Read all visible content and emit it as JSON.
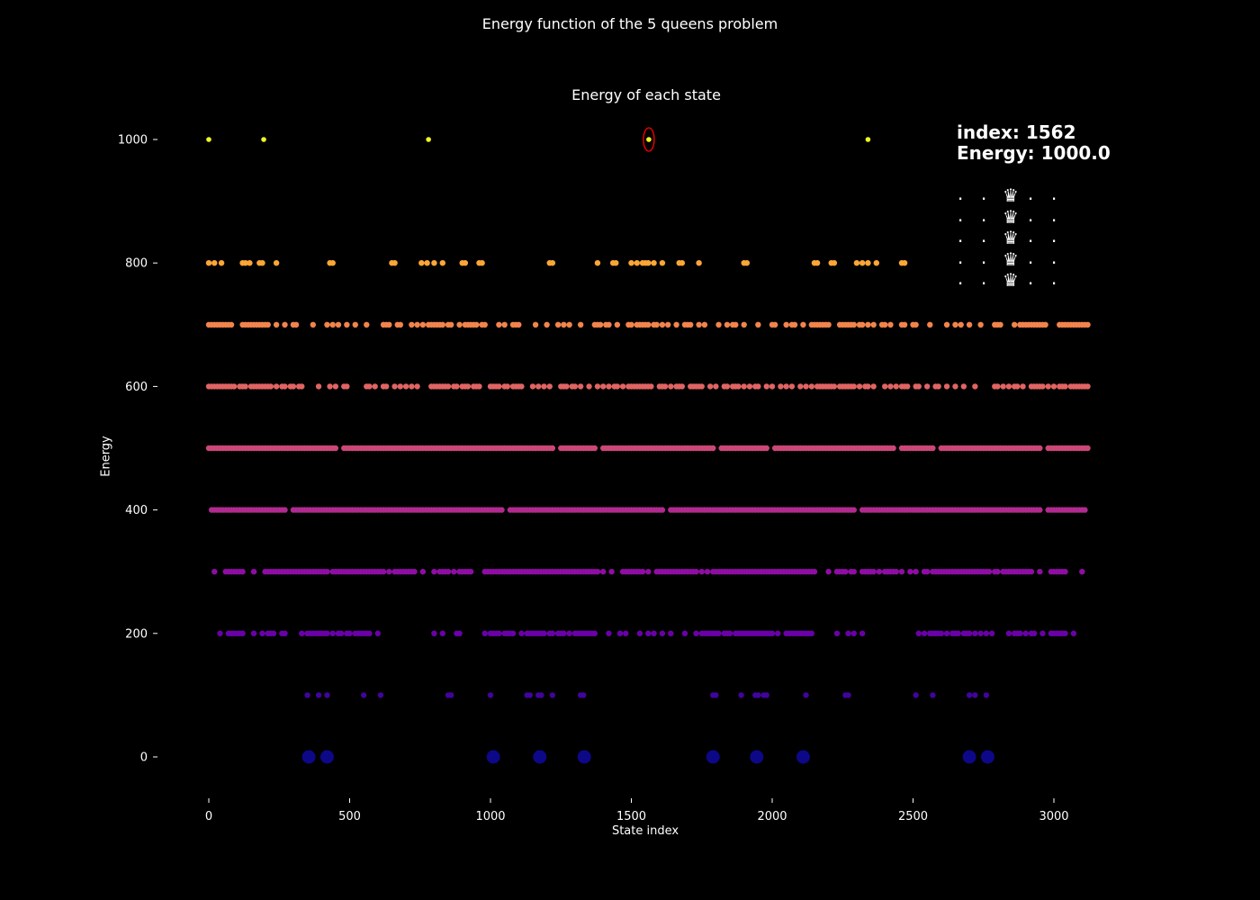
{
  "figure": {
    "suptitle": "Energy function of the 5 queens problem",
    "background": "#000000"
  },
  "chart_data": {
    "type": "scatter",
    "title": "Energy of each state",
    "xlabel": "State index",
    "ylabel": "Energy",
    "xlim": [
      -20,
      3125
    ],
    "ylim": [
      -130,
      1130
    ],
    "xticks": [
      0,
      500,
      1000,
      1500,
      2000,
      2500,
      3000
    ],
    "yticks": [
      0,
      200,
      400,
      600,
      800,
      1000
    ],
    "colormap": "plasma",
    "grid": false,
    "levels": [
      {
        "energy": 1000,
        "color": "#f0f921",
        "x": [
          0,
          195,
          780,
          1562,
          2340
        ]
      },
      {
        "energy": 800,
        "color": "#fca636",
        "x": [
          0,
          20,
          45,
          120,
          130,
          145,
          180,
          190,
          240,
          430,
          440,
          650,
          660,
          755,
          775,
          800,
          830,
          900,
          910,
          960,
          970,
          1210,
          1220,
          1380,
          1435,
          1445,
          1500,
          1520,
          1540,
          1550,
          1560,
          1580,
          1610,
          1670,
          1680,
          1740,
          1900,
          1910,
          2150,
          2160,
          2210,
          2220,
          2300,
          2320,
          2340,
          2370,
          2460,
          2470
        ]
      },
      {
        "energy": 700,
        "color": "#f2844b",
        "x": [
          0,
          10,
          20,
          30,
          40,
          50,
          60,
          70,
          80,
          120,
          130,
          140,
          150,
          160,
          170,
          180,
          190,
          200,
          210,
          240,
          270,
          300,
          310,
          370,
          420,
          440,
          460,
          490,
          520,
          560,
          620,
          630,
          640,
          670,
          680,
          720,
          740,
          760,
          780,
          790,
          800,
          810,
          820,
          830,
          850,
          860,
          890,
          910,
          920,
          930,
          940,
          950,
          970,
          980,
          1030,
          1050,
          1080,
          1090,
          1100,
          1160,
          1200,
          1240,
          1260,
          1280,
          1320,
          1370,
          1380,
          1390,
          1410,
          1420,
          1450,
          1490,
          1500,
          1520,
          1530,
          1540,
          1550,
          1560,
          1580,
          1590,
          1610,
          1630,
          1660,
          1690,
          1700,
          1710,
          1740,
          1760,
          1810,
          1840,
          1860,
          1870,
          1900,
          1950,
          2000,
          2010,
          2050,
          2070,
          2080,
          2110,
          2140,
          2150,
          2160,
          2170,
          2180,
          2190,
          2200,
          2240,
          2250,
          2260,
          2270,
          2280,
          2290,
          2310,
          2320,
          2340,
          2360,
          2390,
          2400,
          2420,
          2460,
          2470,
          2500,
          2510,
          2560,
          2620,
          2650,
          2670,
          2700,
          2740,
          2790,
          2800,
          2810,
          2860,
          2880,
          2890,
          2900,
          2910,
          2920,
          2930,
          2940,
          2950,
          2960,
          2970,
          3020,
          3030,
          3040,
          3050,
          3060,
          3070,
          3080,
          3090,
          3100,
          3110,
          3120
        ]
      },
      {
        "energy": 600,
        "color": "#e16462",
        "x": [
          0,
          10,
          20,
          30,
          40,
          50,
          60,
          70,
          80,
          90,
          110,
          120,
          130,
          150,
          160,
          170,
          180,
          190,
          200,
          210,
          220,
          240,
          260,
          270,
          290,
          300,
          320,
          330,
          390,
          430,
          450,
          480,
          490,
          560,
          570,
          590,
          620,
          630,
          660,
          680,
          700,
          720,
          740,
          790,
          800,
          810,
          820,
          830,
          840,
          850,
          870,
          880,
          900,
          910,
          920,
          940,
          950,
          960,
          1000,
          1010,
          1020,
          1030,
          1050,
          1060,
          1080,
          1090,
          1100,
          1110,
          1150,
          1170,
          1190,
          1210,
          1250,
          1260,
          1270,
          1290,
          1300,
          1320,
          1350,
          1380,
          1400,
          1420,
          1440,
          1450,
          1470,
          1490,
          1500,
          1510,
          1520,
          1530,
          1540,
          1550,
          1560,
          1570,
          1600,
          1610,
          1620,
          1640,
          1660,
          1670,
          1680,
          1710,
          1720,
          1730,
          1740,
          1750,
          1780,
          1800,
          1830,
          1840,
          1860,
          1870,
          1880,
          1900,
          1920,
          1940,
          1950,
          1980,
          2000,
          2030,
          2050,
          2070,
          2100,
          2120,
          2140,
          2160,
          2170,
          2180,
          2190,
          2200,
          2210,
          2220,
          2240,
          2250,
          2260,
          2270,
          2280,
          2290,
          2310,
          2330,
          2340,
          2360,
          2400,
          2420,
          2440,
          2460,
          2470,
          2480,
          2510,
          2520,
          2550,
          2580,
          2590,
          2620,
          2650,
          2680,
          2720,
          2790,
          2800,
          2820,
          2840,
          2860,
          2870,
          2890,
          2920,
          2930,
          2940,
          2950,
          2960,
          2980,
          3000,
          3020,
          3030,
          3040,
          3060,
          3070,
          3080,
          3090,
          3100,
          3110,
          3120
        ]
      },
      {
        "range_from": 0,
        "range_to": 3120,
        "energy": 500,
        "color": "#cc4778",
        "gaps": [
          [
            460,
            470
          ],
          [
            1230,
            1240
          ],
          [
            1380,
            1390
          ],
          [
            1800,
            1810
          ],
          [
            1990,
            2000
          ],
          [
            2440,
            2450
          ],
          [
            2580,
            2590
          ],
          [
            2960,
            2970
          ]
        ]
      },
      {
        "range_from": 10,
        "range_to": 3110,
        "energy": 400,
        "color": "#b12a90",
        "gaps": [
          [
            280,
            290
          ],
          [
            1050,
            1060
          ],
          [
            1620,
            1630
          ],
          [
            2300,
            2310
          ],
          [
            2960,
            2970
          ]
        ]
      },
      {
        "energy": 300,
        "color": "#8f0da4",
        "x": [
          20,
          60,
          70,
          80,
          90,
          100,
          110,
          120,
          160,
          200,
          210,
          220,
          230,
          240,
          250,
          260,
          270,
          280,
          290,
          300,
          310,
          320,
          330,
          340,
          350,
          360,
          370,
          380,
          390,
          400,
          410,
          420,
          440,
          450,
          460,
          470,
          480,
          490,
          500,
          510,
          520,
          530,
          540,
          550,
          560,
          570,
          580,
          590,
          600,
          610,
          620,
          640,
          660,
          670,
          680,
          690,
          700,
          710,
          720,
          730,
          760,
          800,
          820,
          830,
          840,
          850,
          870,
          890,
          900,
          910,
          920,
          930,
          980,
          990,
          1000,
          1010,
          1020,
          1030,
          1040,
          1050,
          1060,
          1070,
          1080,
          1090,
          1100,
          1110,
          1120,
          1130,
          1140,
          1150,
          1160,
          1170,
          1180,
          1190,
          1200,
          1210,
          1220,
          1230,
          1240,
          1250,
          1260,
          1270,
          1280,
          1290,
          1300,
          1310,
          1320,
          1330,
          1340,
          1350,
          1360,
          1370,
          1380,
          1400,
          1430,
          1470,
          1480,
          1490,
          1500,
          1510,
          1520,
          1530,
          1540,
          1560,
          1590,
          1600,
          1610,
          1620,
          1630,
          1640,
          1650,
          1660,
          1670,
          1680,
          1690,
          1700,
          1710,
          1720,
          1730,
          1750,
          1770,
          1790,
          1800,
          1810,
          1820,
          1830,
          1840,
          1850,
          1860,
          1870,
          1880,
          1890,
          1900,
          1910,
          1920,
          1930,
          1940,
          1950,
          1960,
          1970,
          1980,
          1990,
          2000,
          2010,
          2020,
          2030,
          2040,
          2050,
          2060,
          2070,
          2080,
          2090,
          2100,
          2110,
          2120,
          2130,
          2140,
          2150,
          2200,
          2230,
          2240,
          2250,
          2260,
          2280,
          2290,
          2320,
          2330,
          2340,
          2350,
          2360,
          2380,
          2400,
          2410,
          2420,
          2430,
          2440,
          2460,
          2490,
          2510,
          2540,
          2550,
          2570,
          2580,
          2590,
          2600,
          2610,
          2620,
          2630,
          2640,
          2650,
          2660,
          2670,
          2680,
          2690,
          2700,
          2710,
          2720,
          2730,
          2740,
          2750,
          2760,
          2770,
          2790,
          2800,
          2820,
          2830,
          2840,
          2850,
          2860,
          2870,
          2880,
          2890,
          2900,
          2910,
          2920,
          2950,
          2990,
          3000,
          3010,
          3020,
          3030,
          3040,
          3100
        ]
      },
      {
        "energy": 200,
        "color": "#6a00a8",
        "x": [
          40,
          70,
          80,
          90,
          100,
          110,
          120,
          160,
          190,
          210,
          220,
          230,
          260,
          270,
          330,
          350,
          360,
          370,
          380,
          390,
          400,
          410,
          420,
          440,
          460,
          470,
          490,
          500,
          520,
          530,
          540,
          550,
          560,
          570,
          600,
          800,
          830,
          880,
          890,
          980,
          1000,
          1010,
          1020,
          1030,
          1050,
          1060,
          1070,
          1080,
          1110,
          1130,
          1140,
          1150,
          1160,
          1170,
          1180,
          1190,
          1210,
          1220,
          1240,
          1250,
          1260,
          1280,
          1300,
          1310,
          1320,
          1330,
          1340,
          1350,
          1360,
          1370,
          1420,
          1460,
          1480,
          1530,
          1560,
          1580,
          1610,
          1640,
          1690,
          1730,
          1750,
          1760,
          1770,
          1780,
          1790,
          1800,
          1810,
          1830,
          1840,
          1850,
          1870,
          1880,
          1890,
          1900,
          1910,
          1920,
          1930,
          1940,
          1950,
          1960,
          1970,
          1980,
          1990,
          2000,
          2020,
          2050,
          2060,
          2070,
          2080,
          2090,
          2100,
          2110,
          2120,
          2130,
          2140,
          2230,
          2270,
          2290,
          2320,
          2520,
          2540,
          2560,
          2570,
          2580,
          2590,
          2600,
          2620,
          2640,
          2650,
          2660,
          2680,
          2690,
          2700,
          2720,
          2740,
          2760,
          2780,
          2840,
          2860,
          2870,
          2880,
          2900,
          2920,
          2930,
          2960,
          2990,
          3000,
          3010,
          3020,
          3030,
          3040,
          3070
        ]
      },
      {
        "energy": 100,
        "color": "#41049d",
        "x": [
          350,
          390,
          420,
          550,
          610,
          850,
          860,
          1000,
          1130,
          1140,
          1170,
          1180,
          1220,
          1320,
          1330,
          1790,
          1800,
          1890,
          1940,
          1950,
          1970,
          1980,
          2120,
          2260,
          2270,
          2510,
          2570,
          2700,
          2720,
          2760
        ]
      },
      {
        "energy": 0,
        "color": "#0d0887",
        "large": true,
        "x": [
          355,
          420,
          1010,
          1175,
          1333,
          1790,
          1945,
          2110,
          2700,
          2765
        ]
      }
    ],
    "highlight": {
      "x": 1562,
      "y": 1000,
      "color": "#ff0000"
    }
  },
  "info": {
    "index_line": "index: 1562",
    "energy_line": "Energy: 1000.0"
  },
  "board": {
    "rows": [
      [
        ".",
        ".",
        "♛",
        ".",
        "."
      ],
      [
        ".",
        ".",
        "♛",
        ".",
        "."
      ],
      [
        ".",
        ".",
        "♛",
        ".",
        "."
      ],
      [
        ".",
        ".",
        "♛",
        ".",
        "."
      ],
      [
        ".",
        ".",
        "♛",
        ".",
        "."
      ]
    ]
  }
}
